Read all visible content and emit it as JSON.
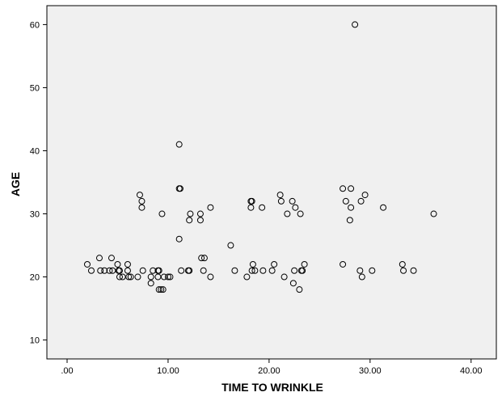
{
  "chart_data": {
    "type": "scatter",
    "title": "",
    "xlabel": "TIME TO WRINKLE",
    "ylabel": "AGE",
    "xlim": [
      -2.0,
      42.5
    ],
    "ylim": [
      7,
      63
    ],
    "xticks": [
      0,
      10,
      20,
      30,
      40
    ],
    "xtick_labels": [
      ".00",
      "10.00",
      "20.00",
      "30.00",
      "40.00"
    ],
    "yticks": [
      10,
      20,
      30,
      40,
      50,
      60
    ],
    "ytick_labels": [
      "10",
      "20",
      "30",
      "40",
      "50",
      "60"
    ],
    "grid": false,
    "legend": "none",
    "colors": {
      "plot_background": "#f0f0f0",
      "marker_stroke": "#000000",
      "axis": "#000000"
    },
    "points": [
      {
        "x": 2.0,
        "y": 22
      },
      {
        "x": 2.4,
        "y": 21
      },
      {
        "x": 3.2,
        "y": 23
      },
      {
        "x": 3.3,
        "y": 21
      },
      {
        "x": 3.7,
        "y": 21
      },
      {
        "x": 4.2,
        "y": 21
      },
      {
        "x": 4.4,
        "y": 23
      },
      {
        "x": 4.5,
        "y": 21
      },
      {
        "x": 5.0,
        "y": 22
      },
      {
        "x": 5.1,
        "y": 21
      },
      {
        "x": 5.2,
        "y": 21
      },
      {
        "x": 5.2,
        "y": 20
      },
      {
        "x": 5.5,
        "y": 20
      },
      {
        "x": 6.0,
        "y": 22
      },
      {
        "x": 6.0,
        "y": 21
      },
      {
        "x": 6.1,
        "y": 20
      },
      {
        "x": 6.3,
        "y": 20
      },
      {
        "x": 7.0,
        "y": 20
      },
      {
        "x": 7.2,
        "y": 33
      },
      {
        "x": 7.4,
        "y": 32
      },
      {
        "x": 7.4,
        "y": 31
      },
      {
        "x": 7.5,
        "y": 21
      },
      {
        "x": 8.3,
        "y": 19
      },
      {
        "x": 8.3,
        "y": 20
      },
      {
        "x": 8.5,
        "y": 21
      },
      {
        "x": 9.0,
        "y": 21
      },
      {
        "x": 9.1,
        "y": 21
      },
      {
        "x": 9.0,
        "y": 20
      },
      {
        "x": 9.1,
        "y": 18
      },
      {
        "x": 9.3,
        "y": 18
      },
      {
        "x": 9.5,
        "y": 18
      },
      {
        "x": 9.4,
        "y": 30
      },
      {
        "x": 9.6,
        "y": 20
      },
      {
        "x": 10.0,
        "y": 20
      },
      {
        "x": 10.2,
        "y": 20
      },
      {
        "x": 11.1,
        "y": 41
      },
      {
        "x": 11.1,
        "y": 34
      },
      {
        "x": 11.2,
        "y": 34
      },
      {
        "x": 11.1,
        "y": 26
      },
      {
        "x": 11.3,
        "y": 21
      },
      {
        "x": 12.0,
        "y": 21
      },
      {
        "x": 12.1,
        "y": 21
      },
      {
        "x": 12.2,
        "y": 30
      },
      {
        "x": 12.1,
        "y": 29
      },
      {
        "x": 13.2,
        "y": 30
      },
      {
        "x": 13.2,
        "y": 29
      },
      {
        "x": 13.3,
        "y": 23
      },
      {
        "x": 13.5,
        "y": 21
      },
      {
        "x": 13.6,
        "y": 23
      },
      {
        "x": 14.2,
        "y": 31
      },
      {
        "x": 14.2,
        "y": 20
      },
      {
        "x": 16.2,
        "y": 25
      },
      {
        "x": 16.6,
        "y": 21
      },
      {
        "x": 17.8,
        "y": 20
      },
      {
        "x": 18.2,
        "y": 32
      },
      {
        "x": 18.3,
        "y": 32
      },
      {
        "x": 18.2,
        "y": 31
      },
      {
        "x": 18.4,
        "y": 22
      },
      {
        "x": 18.3,
        "y": 21
      },
      {
        "x": 18.6,
        "y": 21
      },
      {
        "x": 19.3,
        "y": 31
      },
      {
        "x": 19.4,
        "y": 21
      },
      {
        "x": 20.3,
        "y": 21
      },
      {
        "x": 20.5,
        "y": 22
      },
      {
        "x": 21.1,
        "y": 33
      },
      {
        "x": 21.2,
        "y": 32
      },
      {
        "x": 21.5,
        "y": 20
      },
      {
        "x": 21.8,
        "y": 30
      },
      {
        "x": 22.3,
        "y": 32
      },
      {
        "x": 22.6,
        "y": 31
      },
      {
        "x": 22.4,
        "y": 19
      },
      {
        "x": 22.5,
        "y": 21
      },
      {
        "x": 23.1,
        "y": 30
      },
      {
        "x": 23.2,
        "y": 21
      },
      {
        "x": 23.3,
        "y": 21
      },
      {
        "x": 23.5,
        "y": 22
      },
      {
        "x": 23.0,
        "y": 18
      },
      {
        "x": 27.3,
        "y": 34
      },
      {
        "x": 27.6,
        "y": 32
      },
      {
        "x": 27.3,
        "y": 22
      },
      {
        "x": 28.1,
        "y": 34
      },
      {
        "x": 28.1,
        "y": 31
      },
      {
        "x": 28.0,
        "y": 29
      },
      {
        "x": 28.5,
        "y": 60
      },
      {
        "x": 29.1,
        "y": 32
      },
      {
        "x": 29.5,
        "y": 33
      },
      {
        "x": 29.0,
        "y": 21
      },
      {
        "x": 29.2,
        "y": 20
      },
      {
        "x": 30.2,
        "y": 21
      },
      {
        "x": 31.3,
        "y": 31
      },
      {
        "x": 33.2,
        "y": 22
      },
      {
        "x": 33.3,
        "y": 21
      },
      {
        "x": 34.3,
        "y": 21
      },
      {
        "x": 36.3,
        "y": 30
      }
    ]
  }
}
